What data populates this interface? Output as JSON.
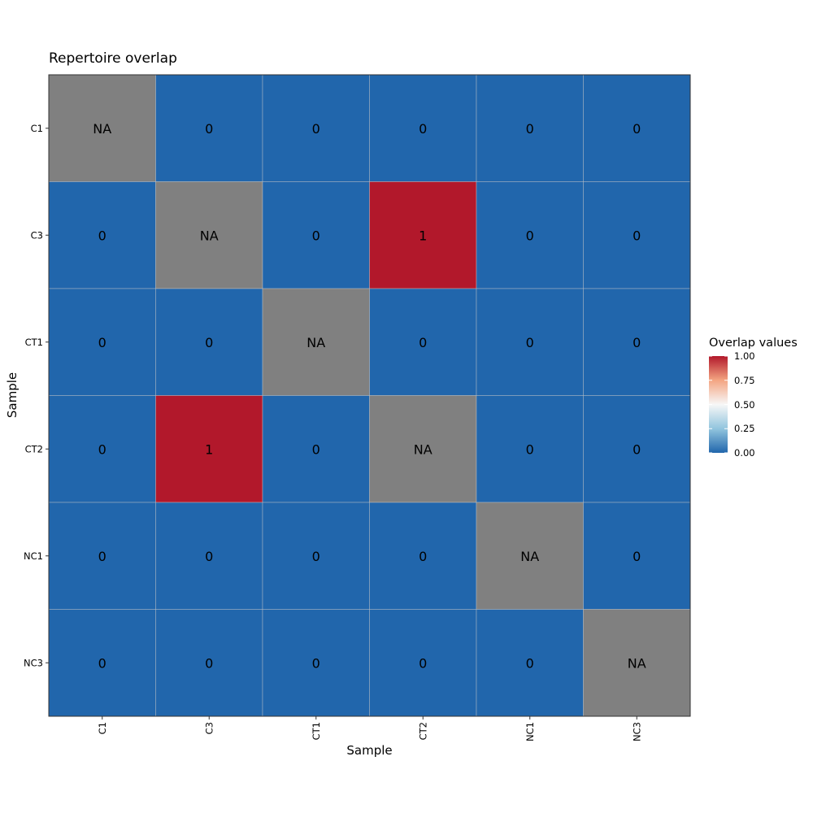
{
  "chart_data": {
    "type": "heatmap",
    "title": "Repertoire overlap",
    "xlabel": "Sample",
    "ylabel": "Sample",
    "x_categories": [
      "C1",
      "C3",
      "CT1",
      "CT2",
      "NC1",
      "NC3"
    ],
    "y_categories": [
      "C1",
      "C3",
      "CT1",
      "CT2",
      "NC1",
      "NC3"
    ],
    "values": [
      [
        null,
        0,
        0,
        0,
        0,
        0
      ],
      [
        0,
        null,
        0,
        1,
        0,
        0
      ],
      [
        0,
        0,
        null,
        0,
        0,
        0
      ],
      [
        0,
        1,
        0,
        null,
        0,
        0
      ],
      [
        0,
        0,
        0,
        0,
        null,
        0
      ],
      [
        0,
        0,
        0,
        0,
        0,
        null
      ]
    ],
    "cell_labels": [
      [
        "NA",
        "0",
        "0",
        "0",
        "0",
        "0"
      ],
      [
        "0",
        "NA",
        "0",
        "1",
        "0",
        "0"
      ],
      [
        "0",
        "0",
        "NA",
        "0",
        "0",
        "0"
      ],
      [
        "0",
        "1",
        "0",
        "NA",
        "0",
        "0"
      ],
      [
        "0",
        "0",
        "0",
        "0",
        "NA",
        "0"
      ],
      [
        "0",
        "0",
        "0",
        "0",
        "0",
        "NA"
      ]
    ],
    "na_color": "#808080",
    "colorscale": {
      "low": "#2166ac",
      "mid": "#f7f7f7",
      "high": "#b2182b",
      "range": [
        0,
        1
      ]
    },
    "legend": {
      "title": "Overlap values",
      "position": "right",
      "ticks": [
        "1.00",
        "0.75",
        "0.50",
        "0.25",
        "0.00"
      ]
    },
    "grid": true
  }
}
